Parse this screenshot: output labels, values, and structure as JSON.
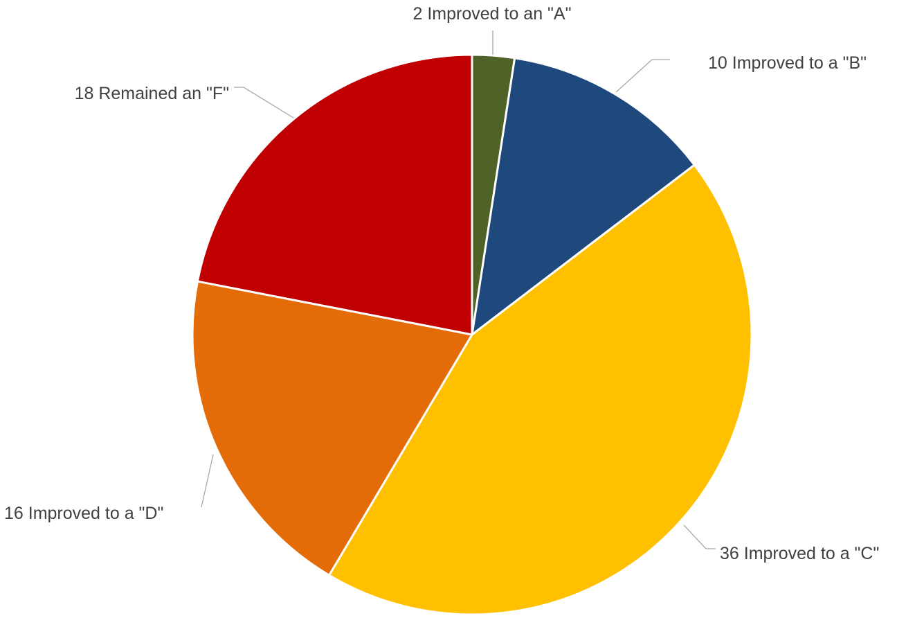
{
  "chart_data": {
    "type": "pie",
    "title": "",
    "slices": [
      {
        "label": "2 Improved to an \"A\"",
        "value": 2,
        "color": "#4f6228"
      },
      {
        "label": "10 Improved to a \"B\"",
        "value": 10,
        "color": "#1f497d"
      },
      {
        "label": "36 Improved to a \"C\"",
        "value": 36,
        "color": "#ffc000"
      },
      {
        "label": "16 Improved to a \"D\"",
        "value": 16,
        "color": "#e36c09"
      },
      {
        "label": "18 Remained an \"F\"",
        "value": 18,
        "color": "#c00000"
      }
    ],
    "start_angle": "12 o'clock",
    "direction": "clockwise",
    "legend": "none",
    "data_labels": "outside with leader lines"
  }
}
